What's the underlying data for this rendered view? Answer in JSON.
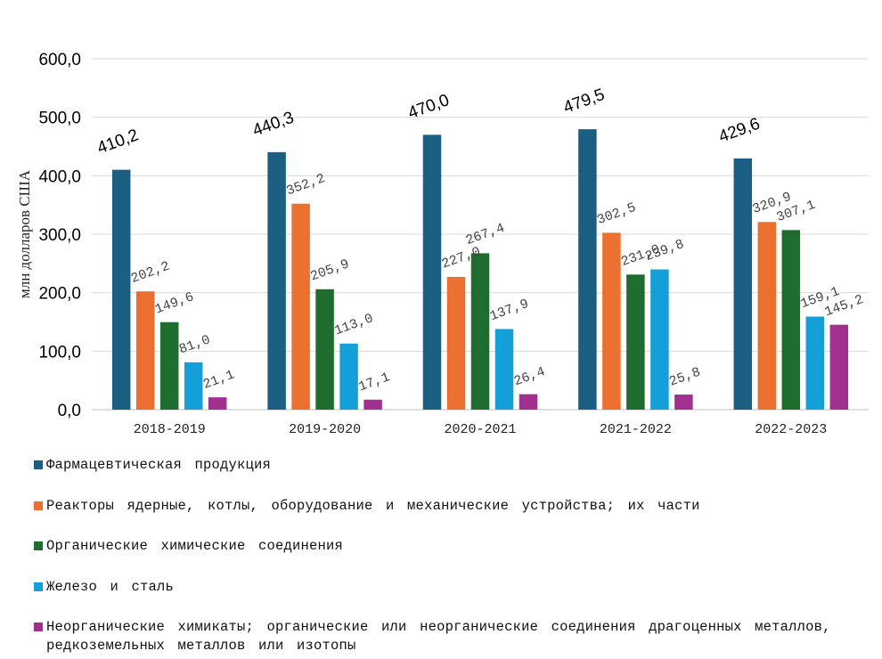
{
  "chart_data": {
    "type": "bar",
    "title": "",
    "xlabel": "",
    "ylabel": "млн долларов США",
    "ylim": [
      0,
      600
    ],
    "yticks": [
      "0,0",
      "100,0",
      "200,0",
      "300,0",
      "400,0",
      "500,0",
      "600,0"
    ],
    "grid": true,
    "legend_position": "bottom",
    "categories": [
      "2018-2019",
      "2019-2020",
      "2020-2021",
      "2021-2022",
      "2022-2023"
    ],
    "series": [
      {
        "name": "Фармацевтическая продукция",
        "color": "#1a5f82",
        "values": [
          410.2,
          440.3,
          470.0,
          479.5,
          429.6
        ],
        "labels": [
          "410,2",
          "440,3",
          "470,0",
          "479,5",
          "429,6"
        ]
      },
      {
        "name": "Реакторы ядерные, котлы, оборудование и механические устройства; их части",
        "color": "#eb7030",
        "values": [
          202.2,
          352.2,
          227.0,
          302.5,
          320.9
        ],
        "labels": [
          "202,2",
          "352,2",
          "227,0",
          "302,5",
          "320,9"
        ]
      },
      {
        "name": "Органические химические соединения",
        "color": "#1f6d2e",
        "values": [
          149.6,
          205.9,
          267.4,
          231.0,
          307.1
        ],
        "labels": [
          "149,6",
          "205,9",
          "267,4",
          "231,0",
          "307,1"
        ]
      },
      {
        "name": "Железо и сталь",
        "color": "#159fd8",
        "values": [
          81.0,
          113.0,
          137.9,
          239.8,
          159.1
        ],
        "labels": [
          "81,0",
          "113,0",
          "137,9",
          "239,8",
          "159,1"
        ]
      },
      {
        "name": "Неорганические химикаты; органические или неорганические соединения драгоценных металлов, редкоземельных металлов или изотопы",
        "color": "#a0318f",
        "values": [
          21.1,
          17.1,
          26.4,
          25.8,
          145.2
        ],
        "labels": [
          "21,1",
          "17,1",
          "26,4",
          "25,8",
          "145,2"
        ]
      }
    ]
  }
}
